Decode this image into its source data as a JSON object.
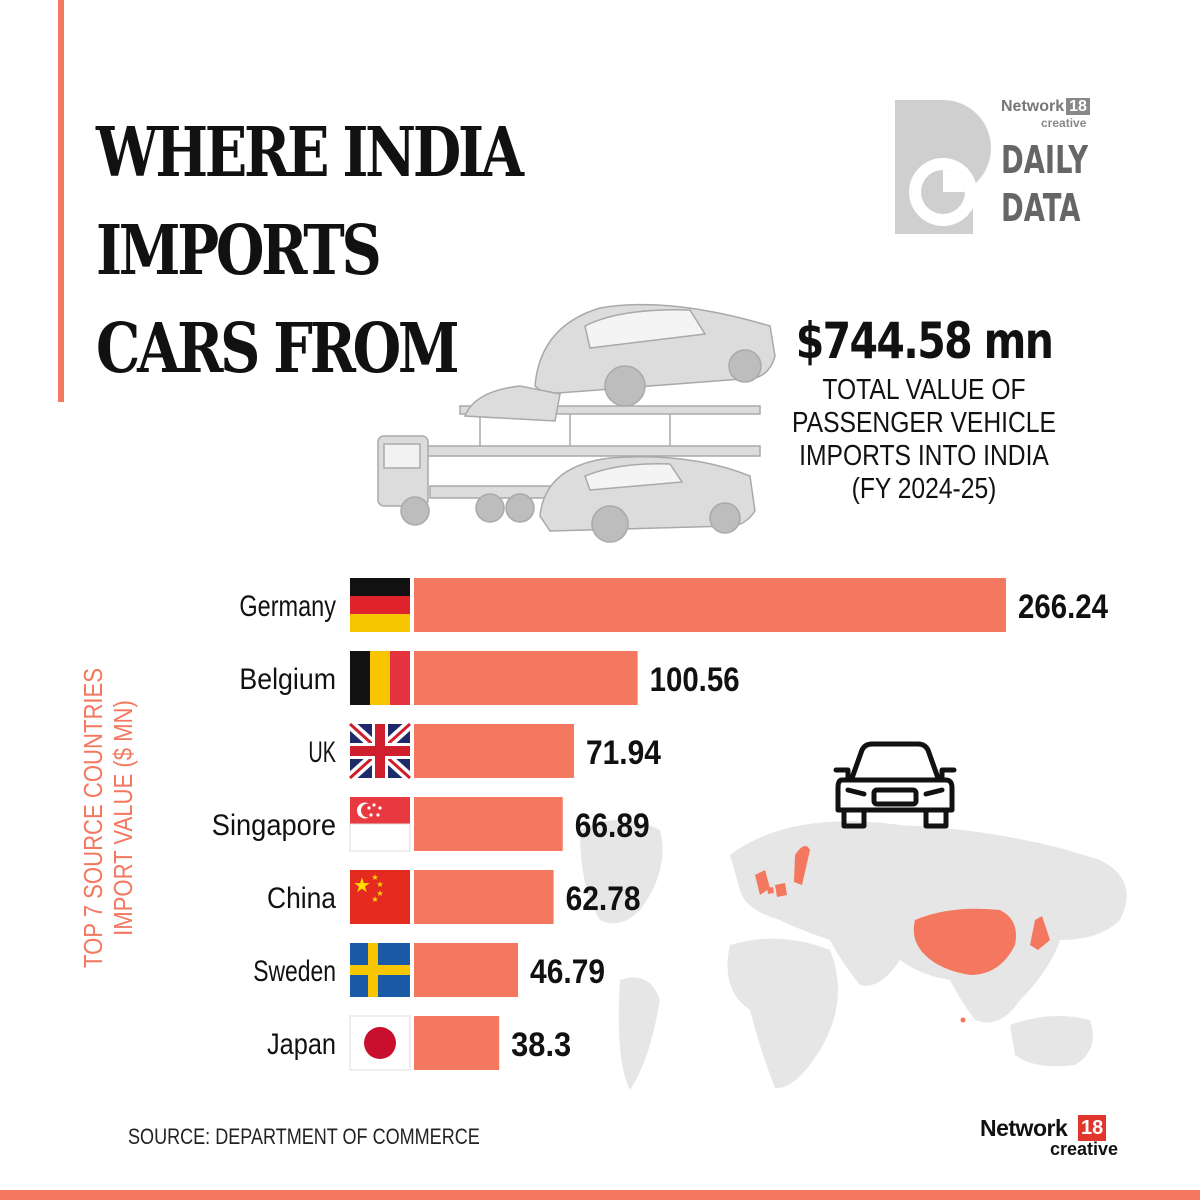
{
  "title_lines": [
    "WHERE INDIA",
    "IMPORTS",
    "CARS FROM"
  ],
  "logo": {
    "brand": "Network",
    "brand_number": "18",
    "brand_sub": "creative",
    "daily": "DAILY",
    "data": "DATA"
  },
  "total": {
    "value": "$744.58 mn",
    "description": "TOTAL VALUE OF\nPASSENGER VEHICLE\nIMPORTS INTO INDIA\n(FY 2024-25)"
  },
  "ylabel_lines": [
    "TOP 7 SOURCE COUNTRIES",
    "IMPORT VALUE ($ MN)"
  ],
  "source": "SOURCE: DEPARTMENT OF COMMERCE",
  "footer": {
    "brand": "Network",
    "number": "18",
    "sub": "creative"
  },
  "colors": {
    "accent": "#f4775f",
    "bar": "#f4775f",
    "map": "#e6e6e6",
    "map_highlight": "#f4775f"
  },
  "chart_data": {
    "type": "bar",
    "orientation": "horizontal",
    "categories": [
      "Germany",
      "Belgium",
      "UK",
      "Singapore",
      "China",
      "Sweden",
      "Japan"
    ],
    "values": [
      266.24,
      100.56,
      71.94,
      66.89,
      62.78,
      46.79,
      38.3
    ],
    "value_labels": [
      "266.24",
      "100.56",
      "71.94",
      "66.89",
      "62.78",
      "46.79",
      "38.3"
    ],
    "flags": [
      "germany-flag",
      "belgium-flag",
      "uk-flag",
      "singapore-flag",
      "china-flag",
      "sweden-flag",
      "japan-flag"
    ],
    "xlim": [
      0,
      266.24
    ],
    "grid": false
  }
}
